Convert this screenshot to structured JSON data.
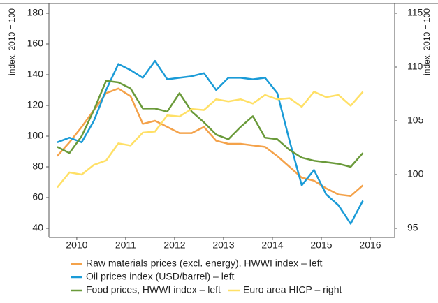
{
  "chart_data": {
    "type": "line",
    "y_label": "index, 2010 = 100",
    "y2_label": "index, 2010 = 100",
    "x": [
      2010.1,
      2010.35,
      2010.6,
      2010.85,
      2011.1,
      2011.35,
      2011.6,
      2011.85,
      2012.1,
      2012.35,
      2012.6,
      2012.85,
      2013.1,
      2013.35,
      2013.6,
      2013.85,
      2014.1,
      2014.35,
      2014.6,
      2014.85,
      2015.1,
      2015.35,
      2015.6,
      2015.85,
      2016.1,
      2016.35
    ],
    "xlim": [
      2009.93,
      2017.0
    ],
    "xticks": [
      {
        "value": 2010.5,
        "label": "2010"
      },
      {
        "value": 2011.5,
        "label": "2011"
      },
      {
        "value": 2012.5,
        "label": "2012"
      },
      {
        "value": 2013.5,
        "label": "2013"
      },
      {
        "value": 2014.5,
        "label": "2014"
      },
      {
        "value": 2015.5,
        "label": "2015"
      },
      {
        "value": 2016.5,
        "label": "2016"
      }
    ],
    "ylim": [
      40,
      180
    ],
    "yticks": [
      40,
      60,
      80,
      100,
      120,
      140,
      160,
      180
    ],
    "y2lim": [
      95,
      115
    ],
    "y2ticks": [
      95,
      100,
      105,
      110,
      115
    ],
    "series": [
      {
        "name": "Raw materials prices (excl. energy), HWWI index – left",
        "color": "#f4a24a",
        "values": [
          87,
          96,
          106,
          117,
          128,
          131,
          126,
          108,
          110,
          106,
          102,
          102,
          106,
          97,
          95,
          95,
          94,
          93,
          87,
          80,
          73,
          71,
          66,
          62,
          61,
          68
        ]
      },
      {
        "name": "Oil prices index (USD/barrel) – left",
        "color": "#1a9bd7",
        "values": [
          96,
          99,
          96,
          110,
          130,
          147,
          143,
          138,
          149,
          137,
          138,
          139,
          141,
          130,
          138,
          138,
          137,
          138,
          128,
          97,
          68,
          78,
          62,
          55,
          43,
          58
        ]
      },
      {
        "name": "Food prices, HWWI index – left",
        "color": "#6a9a3a",
        "values": [
          93,
          89,
          100,
          117,
          136,
          135,
          131,
          118,
          118,
          116,
          128,
          116,
          109,
          101,
          98,
          106,
          113,
          99,
          98,
          91,
          86,
          84,
          83,
          82,
          80,
          89
        ]
      },
      {
        "name": "Euro area HICP – right",
        "color": "#ffe066",
        "axis": "y2",
        "values": [
          98.8,
          100.2,
          100.0,
          100.9,
          101.3,
          102.9,
          102.7,
          103.9,
          104.0,
          105.5,
          105.4,
          106.1,
          106.0,
          107.0,
          106.8,
          107.0,
          106.6,
          107.4,
          107.0,
          107.1,
          106.3,
          107.7,
          107.2,
          107.4,
          106.4,
          107.7
        ]
      }
    ]
  }
}
